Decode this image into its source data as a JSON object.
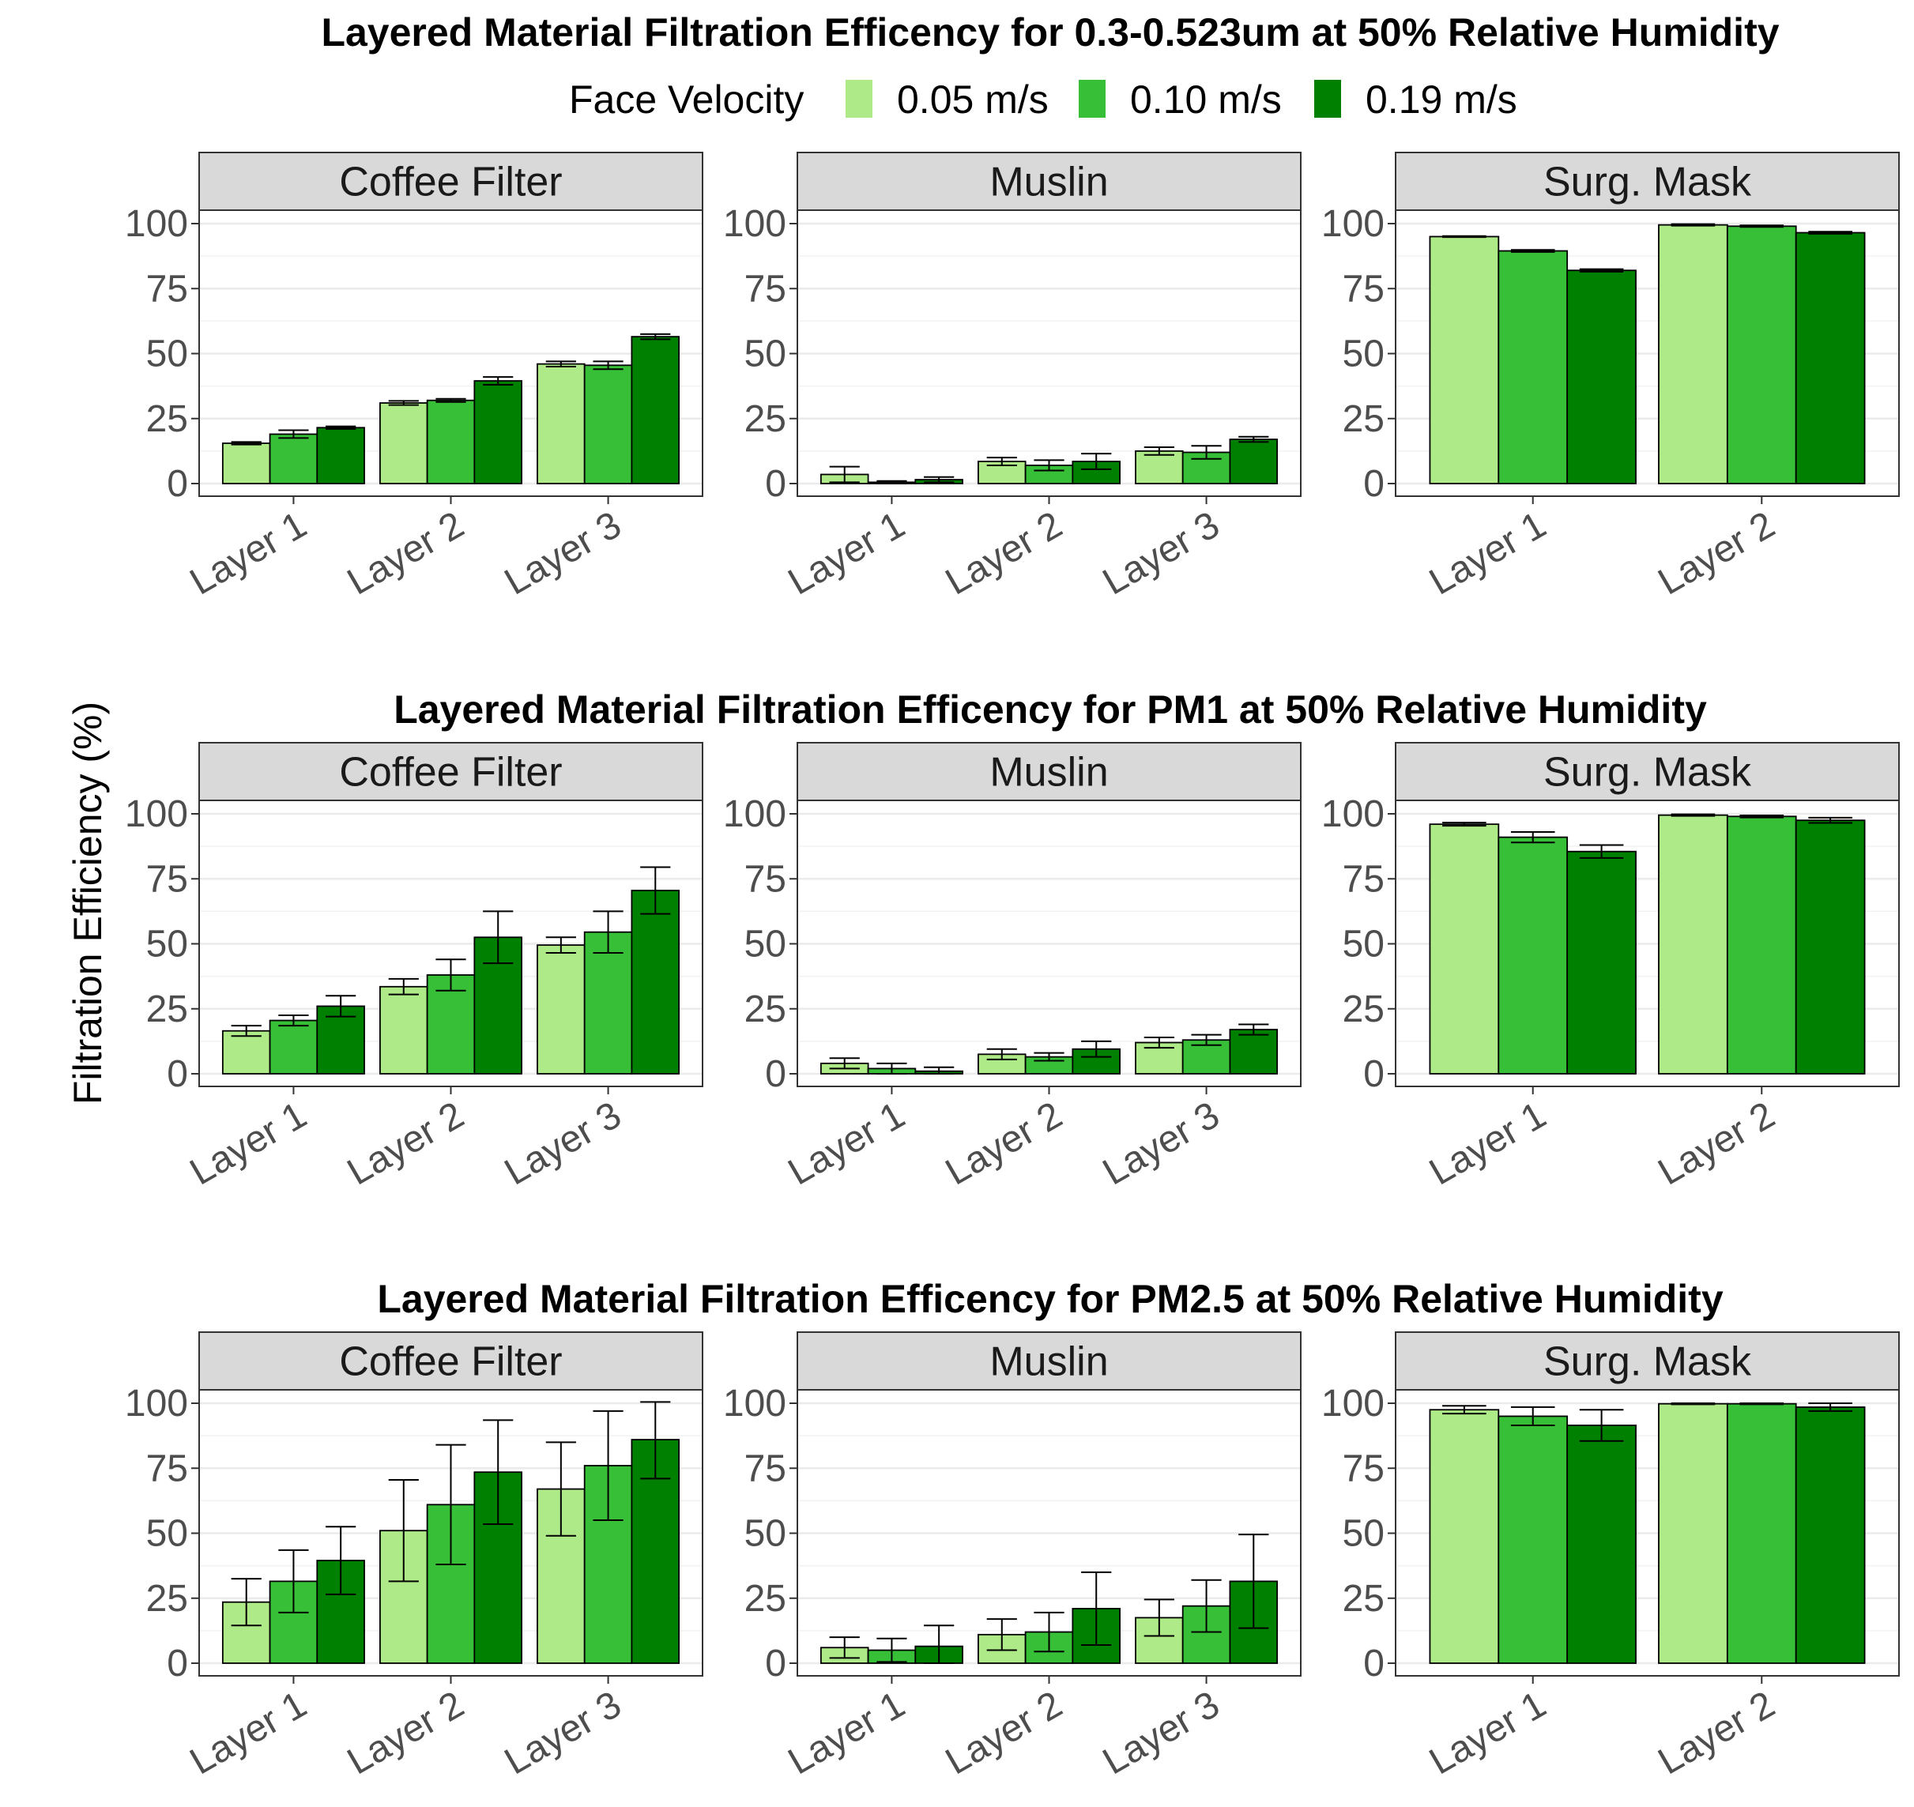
{
  "ylabel": "Filtration Efficiency (%)",
  "legend": {
    "title": "Face Velocity",
    "items": [
      {
        "label": "0.05 m/s",
        "color": "#aeea88"
      },
      {
        "label": "0.10 m/s",
        "color": "#38bf38"
      },
      {
        "label": "0.19 m/s",
        "color": "#008000"
      }
    ]
  },
  "chart_data": [
    {
      "type": "bar",
      "title": "Layered Material Filtration Efficency for 0.3-0.523um at 50% Relative Humidity",
      "ylabel": "Filtration Efficiency (%)",
      "ylim": [
        0,
        100
      ],
      "yticks": [
        0,
        25,
        50,
        75,
        100
      ],
      "series_names": [
        "0.05 m/s",
        "0.10 m/s",
        "0.19 m/s"
      ],
      "facets": [
        {
          "name": "Coffee Filter",
          "categories": [
            "Layer 1",
            "Layer 2",
            "Layer 3"
          ],
          "values": [
            [
              15.5,
              19,
              21.5
            ],
            [
              31,
              32,
              39.5
            ],
            [
              46,
              45.5,
              56.5
            ]
          ],
          "errors": [
            [
              0.5,
              1.5,
              0.5
            ],
            [
              0.8,
              0.6,
              1.5
            ],
            [
              1,
              1.5,
              1
            ]
          ]
        },
        {
          "name": "Muslin",
          "categories": [
            "Layer 1",
            "Layer 2",
            "Layer 3"
          ],
          "values": [
            [
              3.5,
              0.5,
              1.5
            ],
            [
              8.5,
              7,
              8.5
            ],
            [
              12.5,
              12,
              17
            ]
          ],
          "errors": [
            [
              3,
              0.5,
              1
            ],
            [
              1.5,
              2,
              3
            ],
            [
              1.5,
              2.5,
              1
            ]
          ]
        },
        {
          "name": "Surg. Mask",
          "categories": [
            "Layer 1",
            "Layer 2"
          ],
          "values": [
            [
              95,
              89.5,
              82
            ],
            [
              99.5,
              99,
              96.5
            ]
          ],
          "errors": [
            [
              0.2,
              0.4,
              0.5
            ],
            [
              0.3,
              0.3,
              0.4
            ]
          ]
        }
      ]
    },
    {
      "type": "bar",
      "title": "Layered Material Filtration Efficency for PM1 at 50% Relative Humidity",
      "ylabel": "Filtration Efficiency (%)",
      "ylim": [
        0,
        100
      ],
      "yticks": [
        0,
        25,
        50,
        75,
        100
      ],
      "series_names": [
        "0.05 m/s",
        "0.10 m/s",
        "0.19 m/s"
      ],
      "facets": [
        {
          "name": "Coffee Filter",
          "categories": [
            "Layer 1",
            "Layer 2",
            "Layer 3"
          ],
          "values": [
            [
              16.5,
              20.5,
              26
            ],
            [
              33.5,
              38,
              52.5
            ],
            [
              49.5,
              54.5,
              70.5
            ]
          ],
          "errors": [
            [
              2,
              2,
              4
            ],
            [
              3,
              6,
              10
            ],
            [
              3,
              8,
              9
            ]
          ]
        },
        {
          "name": "Muslin",
          "categories": [
            "Layer 1",
            "Layer 2",
            "Layer 3"
          ],
          "values": [
            [
              4,
              2,
              1
            ],
            [
              7.5,
              6.5,
              9.5
            ],
            [
              12,
              13,
              17
            ]
          ],
          "errors": [
            [
              2,
              2,
              1.5
            ],
            [
              2,
              1.5,
              3
            ],
            [
              2,
              2,
              2
            ]
          ]
        },
        {
          "name": "Surg. Mask",
          "categories": [
            "Layer 1",
            "Layer 2"
          ],
          "values": [
            [
              96,
              91,
              85.5
            ],
            [
              99.5,
              99,
              97.5
            ]
          ],
          "errors": [
            [
              0.6,
              2,
              2.5
            ],
            [
              0.3,
              0.4,
              1
            ]
          ]
        }
      ]
    },
    {
      "type": "bar",
      "title": "Layered Material Filtration Efficency for PM2.5 at 50% Relative Humidity",
      "ylabel": "Filtration Efficiency (%)",
      "ylim": [
        0,
        100
      ],
      "yticks": [
        0,
        25,
        50,
        75,
        100
      ],
      "series_names": [
        "0.05 m/s",
        "0.10 m/s",
        "0.19 m/s"
      ],
      "facets": [
        {
          "name": "Coffee Filter",
          "categories": [
            "Layer 1",
            "Layer 2",
            "Layer 3"
          ],
          "values": [
            [
              23.5,
              31.5,
              39.5
            ],
            [
              51,
              61,
              73.5
            ],
            [
              67,
              76,
              86
            ]
          ],
          "errors": [
            [
              9,
              12,
              13
            ],
            [
              19.5,
              23,
              20
            ],
            [
              18,
              21,
              15
            ]
          ]
        },
        {
          "name": "Muslin",
          "categories": [
            "Layer 1",
            "Layer 2",
            "Layer 3"
          ],
          "values": [
            [
              6,
              5,
              6.5
            ],
            [
              11,
              12,
              21
            ],
            [
              17.5,
              22,
              31.5
            ]
          ],
          "errors": [
            [
              4,
              4.5,
              8
            ],
            [
              6,
              7.5,
              14
            ],
            [
              7,
              10,
              18
            ]
          ]
        },
        {
          "name": "Surg. Mask",
          "categories": [
            "Layer 1",
            "Layer 2"
          ],
          "values": [
            [
              97.5,
              95,
              91.5
            ],
            [
              99.8,
              99.8,
              98.5
            ]
          ],
          "errors": [
            [
              1.5,
              3.5,
              6
            ],
            [
              0.2,
              0.2,
              1.5
            ]
          ]
        }
      ]
    }
  ]
}
